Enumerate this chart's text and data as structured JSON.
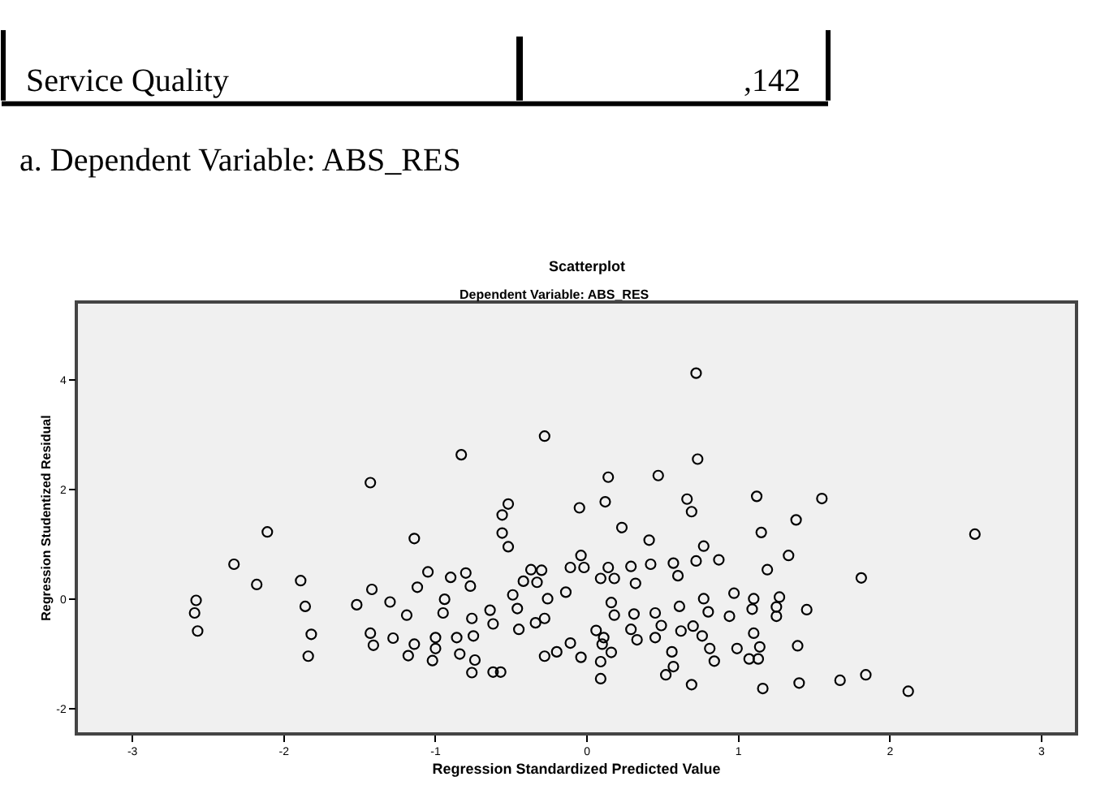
{
  "chart_data": {
    "type": "scatter",
    "title": "Scatterplot",
    "subtitle": "Dependent Variable: ABS_RES",
    "xlabel": "Regression Standardized Predicted Value",
    "ylabel": "Regression Studentized Residual",
    "annotations": [
      "Service Quality",
      ",142",
      "a. Dependent Variable: ABS_RES"
    ],
    "xlim": [
      -3.36,
      3.22
    ],
    "xticks": [
      -3,
      -2,
      -1,
      0,
      1,
      2,
      3
    ],
    "ylim": [
      -2.43,
      5.4
    ],
    "yticks": [
      -2,
      0,
      2,
      4
    ],
    "marker": "circle",
    "series": [
      {
        "color": "#000000",
        "x": [
          -2.58,
          -2.59,
          -2.57,
          -2.33,
          -2.18,
          -2.11,
          -1.89,
          -1.86,
          -1.82,
          -1.84,
          -1.43,
          -1.52,
          -1.42,
          -1.43,
          -1.41,
          -1.3,
          -1.28,
          -1.19,
          -1.14,
          -1.12,
          -1.05,
          -1.18,
          -1.14,
          -1.02,
          -1.0,
          -1.0,
          -0.94,
          -0.95,
          -0.9,
          -0.8,
          -0.77,
          -0.83,
          -0.86,
          -0.84,
          -0.76,
          -0.75,
          -0.74,
          -0.76,
          -0.64,
          -0.62,
          -0.62,
          -0.57,
          -0.52,
          -0.56,
          -0.56,
          -0.52,
          -0.49,
          -0.46,
          -0.45,
          -0.37,
          -0.3,
          -0.33,
          -0.42,
          -0.26,
          -0.28,
          -0.34,
          -0.28,
          -0.2,
          -0.14,
          -0.28,
          -0.05,
          -0.04,
          -0.02,
          -0.11,
          0.06,
          0.11,
          -0.11,
          -0.04,
          0.09,
          0.09,
          0.14,
          0.12,
          0.72,
          0.73,
          0.47,
          0.66,
          0.69,
          1.12,
          1.55,
          1.38,
          1.15,
          0.23,
          0.41,
          0.77,
          1.33,
          1.19,
          0.87,
          0.72,
          0.57,
          0.42,
          0.29,
          0.14,
          0.6,
          0.32,
          0.18,
          0.09,
          2.56,
          1.81,
          0.16,
          0.18,
          0.31,
          0.45,
          0.61,
          0.77,
          0.8,
          0.94,
          0.97,
          1.1,
          1.09,
          1.27,
          1.25,
          1.25,
          1.45,
          0.49,
          0.29,
          0.62,
          0.7,
          0.76,
          0.45,
          0.33,
          1.1,
          0.81,
          0.99,
          1.14,
          1.39,
          0.56,
          0.16,
          0.84,
          1.07,
          1.13,
          0.57,
          0.52,
          0.69,
          1.16,
          1.4,
          1.67,
          1.84,
          2.12,
          0.1
        ],
        "values": [
          -0.02,
          -0.25,
          -0.58,
          0.64,
          0.27,
          1.23,
          0.34,
          -0.13,
          -0.64,
          -1.04,
          2.13,
          -0.1,
          0.18,
          -0.62,
          -0.84,
          -0.05,
          -0.71,
          -0.29,
          1.11,
          0.22,
          0.5,
          -1.03,
          -0.82,
          -1.12,
          -0.9,
          -0.7,
          0.0,
          -0.25,
          0.4,
          0.48,
          0.24,
          2.64,
          -0.7,
          -1.0,
          -0.35,
          -0.67,
          -1.11,
          -1.34,
          -0.2,
          -0.45,
          -1.33,
          -1.33,
          1.74,
          1.54,
          1.21,
          0.96,
          0.08,
          -0.17,
          -0.55,
          0.54,
          0.53,
          0.31,
          0.33,
          0.01,
          -0.35,
          -0.43,
          -1.04,
          -0.96,
          0.13,
          2.98,
          1.67,
          0.8,
          0.58,
          0.58,
          -0.57,
          -0.7,
          -0.8,
          -1.06,
          -1.14,
          -1.45,
          2.23,
          1.78,
          4.13,
          2.56,
          2.26,
          1.83,
          1.6,
          1.88,
          1.84,
          1.45,
          1.22,
          1.31,
          1.08,
          0.97,
          0.8,
          0.54,
          0.72,
          0.7,
          0.66,
          0.64,
          0.6,
          0.58,
          0.43,
          0.29,
          0.38,
          0.38,
          1.19,
          0.39,
          -0.06,
          -0.29,
          -0.27,
          -0.25,
          -0.13,
          0.01,
          -0.23,
          -0.31,
          0.11,
          0.01,
          -0.18,
          0.04,
          -0.14,
          -0.31,
          -0.19,
          -0.48,
          -0.55,
          -0.58,
          -0.49,
          -0.67,
          -0.7,
          -0.74,
          -0.62,
          -0.9,
          -0.9,
          -0.87,
          -0.85,
          -0.96,
          -0.97,
          -1.13,
          -1.09,
          -1.09,
          -1.23,
          -1.38,
          -1.56,
          -1.63,
          -1.53,
          -1.48,
          -1.38,
          -1.68,
          -0.82
        ]
      }
    ]
  }
}
